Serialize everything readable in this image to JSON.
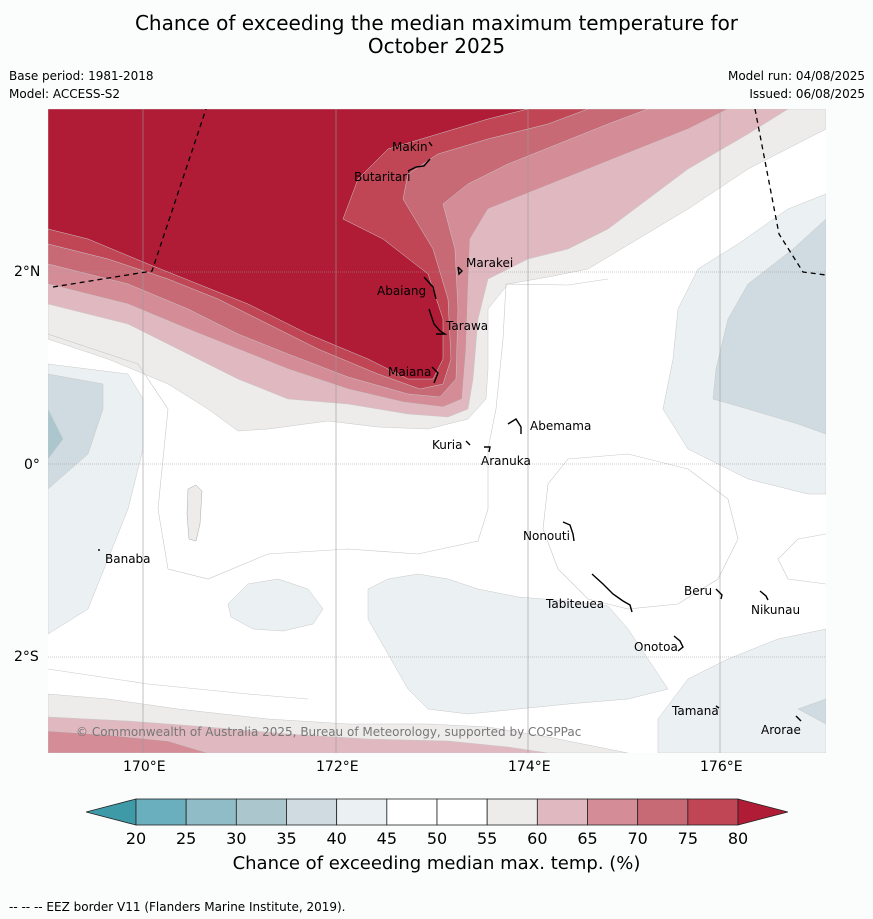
{
  "title": {
    "line1": "Chance of exceeding the median maximum temperature for",
    "line2": "October 2025"
  },
  "meta": {
    "base_period": "Base period: 1981-2018",
    "model": "Model: ACCESS-S2",
    "model_run": "Model run: 04/08/2025",
    "issued": "Issued: 06/08/2025"
  },
  "axes": {
    "lat_labels": [
      "2°N",
      "0°",
      "2°S"
    ],
    "lon_labels": [
      "170°E",
      "172°E",
      "174°E",
      "176°E"
    ]
  },
  "places": [
    "Makin",
    "Butaritari",
    "Marakei",
    "Abaiang",
    "Tarawa",
    "Maiana",
    "Abemama",
    "Kuria",
    "Aranuka",
    "Nonouti",
    "Banaba",
    "Beru",
    "Tabiteuea",
    "Nikunau",
    "Onotoa",
    "Tamana",
    "Arorae"
  ],
  "copyright": "© Commonwealth of Australia 2025, Bureau of Meteorology, supported by COSPPac",
  "colorbar": {
    "ticks": [
      "20",
      "25",
      "30",
      "35",
      "40",
      "45",
      "50",
      "55",
      "60",
      "65",
      "70",
      "75",
      "80"
    ],
    "colors": [
      "#6aafbd",
      "#8fbcc7",
      "#abc7cd",
      "#cfdbe0",
      "#ebf0f3",
      "#ffffff",
      "#ffffff",
      "#eeebeb",
      "#e0b8bf",
      "#d48c97",
      "#c86a76",
      "#c04555"
    ],
    "low_extend_color": "#3f9aa8",
    "high_extend_color": "#b01c36",
    "label": "Chance of exceeding median max. temp. (%)"
  },
  "footnote": "--  --  -- EEZ border V11 (Flanders Marine Institute, 2019)."
}
